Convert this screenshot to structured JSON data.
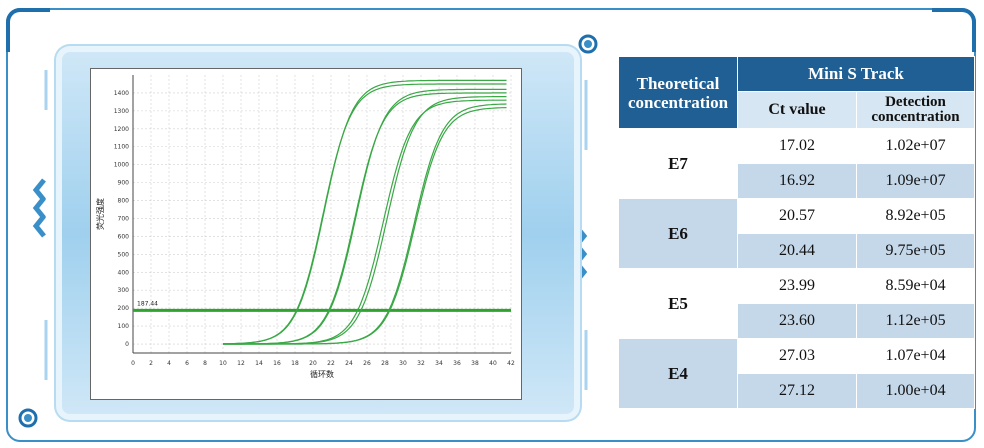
{
  "colors": {
    "frame_blue": "#3a8fc8",
    "header_blue": "#1f5f93",
    "row_light": "#c5d8ea",
    "curve_green": "#39a845",
    "threshold_green": "#2ea32e"
  },
  "table": {
    "col1_header": "Theoretical concentration",
    "group_header": "Mini S Track",
    "col2_header": "Ct value",
    "col3_header": "Detection concentration",
    "groups": [
      {
        "label": "E7",
        "rows": [
          {
            "ct": "17.02",
            "conc": "1.02e+07"
          },
          {
            "ct": "16.92",
            "conc": "1.09e+07"
          }
        ]
      },
      {
        "label": "E6",
        "rows": [
          {
            "ct": "20.57",
            "conc": "8.92e+05"
          },
          {
            "ct": "20.44",
            "conc": "9.75e+05"
          }
        ]
      },
      {
        "label": "E5",
        "rows": [
          {
            "ct": "23.99",
            "conc": "8.59e+04"
          },
          {
            "ct": "23.60",
            "conc": "1.12e+05"
          }
        ]
      },
      {
        "label": "E4",
        "rows": [
          {
            "ct": "27.03",
            "conc": "1.07e+04"
          },
          {
            "ct": "27.12",
            "conc": "1.00e+04"
          }
        ]
      }
    ]
  },
  "chart_data": {
    "type": "line",
    "xlabel": "循环数",
    "ylabel": "荧光强度",
    "xlim": [
      0,
      42
    ],
    "ylim": [
      -50,
      1500
    ],
    "x_ticks": [
      "0",
      "2",
      "4",
      "6",
      "8",
      "10",
      "12",
      "14",
      "16",
      "18",
      "20",
      "22",
      "24",
      "26",
      "28",
      "30",
      "32",
      "34",
      "36",
      "38",
      "40",
      "42"
    ],
    "y_ticks": [
      "0",
      "100",
      "200",
      "300",
      "400",
      "500",
      "600",
      "700",
      "800",
      "900",
      "1000",
      "1100",
      "1200",
      "1300",
      "1400"
    ],
    "threshold": {
      "label": "187.44",
      "value": 187.44
    },
    "series": [
      {
        "ct": 17.02,
        "plateau": 1470
      },
      {
        "ct": 16.92,
        "plateau": 1450
      },
      {
        "ct": 20.57,
        "plateau": 1420
      },
      {
        "ct": 20.44,
        "plateau": 1400
      },
      {
        "ct": 23.99,
        "plateau": 1380
      },
      {
        "ct": 23.6,
        "plateau": 1360
      },
      {
        "ct": 27.03,
        "plateau": 1340
      },
      {
        "ct": 27.12,
        "plateau": 1320
      }
    ]
  }
}
